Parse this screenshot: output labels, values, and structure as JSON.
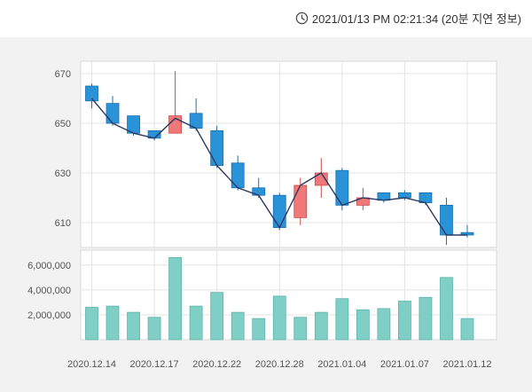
{
  "header": {
    "timestamp": "2021/01/13 PM 02:21:34 (20분 지연 정보)"
  },
  "colors": {
    "up": "#f07878",
    "down": "#2a93d8",
    "volume": "#7fcfc6",
    "line": "#2b3a63"
  },
  "chart_data": {
    "type": "candlestick",
    "price_ylim": [
      600,
      675
    ],
    "price_ticks": [
      "670",
      "650",
      "630",
      "610"
    ],
    "price_tick_values": [
      670,
      650,
      630,
      610
    ],
    "volume_ylim": [
      0,
      7200000
    ],
    "volume_ticks": [
      "6,000,000",
      "4,000,000",
      "2,000,000"
    ],
    "volume_tick_values": [
      6000000,
      4000000,
      2000000
    ],
    "x_labels": [
      "2020.12.14",
      "2020.12.17",
      "2020.12.22",
      "2020.12.28",
      "2021.01.04",
      "2021.01.07",
      "2021.01.12"
    ],
    "x_label_indices": [
      0,
      3,
      6,
      9,
      12,
      15,
      18
    ],
    "candles": [
      {
        "open": 665,
        "high": 666,
        "low": 656,
        "close": 659
      },
      {
        "open": 658,
        "high": 661,
        "low": 649,
        "close": 650
      },
      {
        "open": 653,
        "high": 653,
        "low": 645,
        "close": 646
      },
      {
        "open": 647,
        "high": 647,
        "low": 643,
        "close": 644
      },
      {
        "open": 646,
        "high": 671,
        "low": 646,
        "close": 653
      },
      {
        "open": 654,
        "high": 660,
        "low": 647,
        "close": 648
      },
      {
        "open": 647,
        "high": 649,
        "low": 632,
        "close": 633
      },
      {
        "open": 634,
        "high": 637,
        "low": 623,
        "close": 624
      },
      {
        "open": 624,
        "high": 628,
        "low": 620,
        "close": 621
      },
      {
        "open": 621,
        "high": 622,
        "low": 607,
        "close": 608
      },
      {
        "open": 612,
        "high": 628,
        "low": 609,
        "close": 625
      },
      {
        "open": 625,
        "high": 636,
        "low": 620,
        "close": 630
      },
      {
        "open": 631,
        "high": 632,
        "low": 615,
        "close": 617
      },
      {
        "open": 617,
        "high": 624,
        "low": 615,
        "close": 620
      },
      {
        "open": 622,
        "high": 622,
        "low": 618,
        "close": 619
      },
      {
        "open": 622,
        "high": 623,
        "low": 619,
        "close": 620
      },
      {
        "open": 622,
        "high": 622,
        "low": 617,
        "close": 618
      },
      {
        "open": 617,
        "high": 620,
        "low": 601,
        "close": 605
      },
      {
        "open": 606,
        "high": 609,
        "low": 604,
        "close": 605
      }
    ],
    "line_values": [
      660,
      650,
      646,
      644,
      652,
      648,
      633,
      624,
      621,
      608,
      625,
      630,
      617,
      620,
      619,
      620,
      618,
      605,
      605
    ],
    "volumes": [
      2600000,
      2700000,
      2200000,
      1800000,
      6600000,
      2700000,
      3800000,
      2200000,
      1700000,
      3500000,
      1800000,
      2200000,
      3300000,
      2400000,
      2500000,
      3100000,
      3400000,
      5000000,
      1700000
    ]
  }
}
